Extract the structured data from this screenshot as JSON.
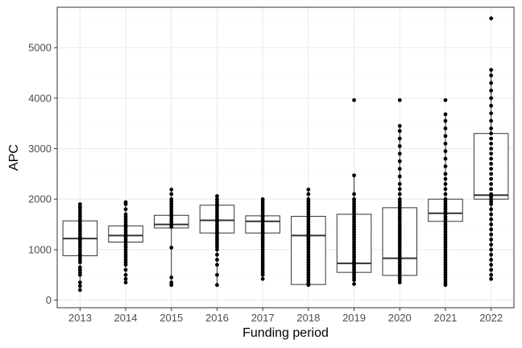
{
  "chart_data": {
    "type": "box",
    "title": "",
    "xlabel": "Funding period",
    "ylabel": "APC",
    "ylim": [
      -150,
      5800
    ],
    "yticks": [
      0,
      1000,
      2000,
      3000,
      4000,
      5000
    ],
    "theme": "bw",
    "grid": true,
    "categories": [
      "2013",
      "2014",
      "2015",
      "2016",
      "2017",
      "2018",
      "2019",
      "2020",
      "2021",
      "2022"
    ],
    "boxes": [
      {
        "category": "2013",
        "q1": 880,
        "median": 1220,
        "q3": 1570,
        "whisker_low": 200,
        "whisker_high": 1900
      },
      {
        "category": "2014",
        "q1": 1150,
        "median": 1280,
        "q3": 1470,
        "whisker_low": 350,
        "whisker_high": 1940
      },
      {
        "category": "2015",
        "q1": 1430,
        "median": 1500,
        "q3": 1680,
        "whisker_low": 300,
        "whisker_high": 2190
      },
      {
        "category": "2016",
        "q1": 1330,
        "median": 1580,
        "q3": 1880,
        "whisker_low": 300,
        "whisker_high": 2060
      },
      {
        "category": "2017",
        "q1": 1330,
        "median": 1560,
        "q3": 1670,
        "whisker_low": 420,
        "whisker_high": 2000
      },
      {
        "category": "2018",
        "q1": 310,
        "median": 1280,
        "q3": 1660,
        "whisker_low": 300,
        "whisker_high": 2190
      },
      {
        "category": "2019",
        "q1": 550,
        "median": 730,
        "q3": 1700,
        "whisker_low": 320,
        "whisker_high": 2470
      },
      {
        "category": "2020",
        "q1": 490,
        "median": 830,
        "q3": 1830,
        "whisker_low": 350,
        "whisker_high": 3450
      },
      {
        "category": "2021",
        "q1": 1560,
        "median": 1720,
        "q3": 2000,
        "whisker_low": 300,
        "whisker_high": 3680
      },
      {
        "category": "2022",
        "q1": 2000,
        "median": 2080,
        "q3": 3300,
        "whisker_low": 420,
        "whisker_high": 4560
      }
    ],
    "points": [
      {
        "category": "2013",
        "values": [
          1900,
          1850,
          1800,
          1750,
          1700,
          1650,
          1600,
          1550,
          1500,
          1450,
          1400,
          1350,
          1300,
          1250,
          1200,
          1150,
          1100,
          1050,
          1000,
          950,
          900,
          850,
          800,
          750,
          650,
          600,
          550,
          500,
          350,
          280,
          200
        ]
      },
      {
        "category": "2014",
        "values": [
          1940,
          1900,
          1800,
          1700,
          1650,
          1600,
          1550,
          1500,
          1450,
          1400,
          1350,
          1300,
          1250,
          1200,
          1150,
          1100,
          1050,
          1000,
          950,
          900,
          850,
          800,
          750,
          700,
          600,
          500,
          420,
          350
        ]
      },
      {
        "category": "2015",
        "values": [
          2190,
          2100,
          2000,
          1950,
          1900,
          1850,
          1800,
          1750,
          1700,
          1650,
          1600,
          1550,
          1500,
          1450,
          1040,
          450,
          350,
          300
        ]
      },
      {
        "category": "2016",
        "values": [
          2060,
          2000,
          1950,
          1900,
          1850,
          1800,
          1750,
          1700,
          1650,
          1600,
          1550,
          1500,
          1450,
          1400,
          1350,
          1300,
          1250,
          1200,
          1150,
          1100,
          1050,
          1000,
          900,
          800,
          700,
          500,
          300
        ]
      },
      {
        "category": "2017",
        "values": [
          2000,
          1950,
          1900,
          1850,
          1800,
          1750,
          1700,
          1650,
          1600,
          1550,
          1500,
          1450,
          1400,
          1350,
          1300,
          1250,
          1200,
          1150,
          1100,
          1050,
          1000,
          950,
          900,
          850,
          800,
          750,
          700,
          650,
          600,
          550,
          500,
          420
        ]
      },
      {
        "category": "2018",
        "values": [
          2190,
          2100,
          2000,
          1950,
          1900,
          1850,
          1800,
          1750,
          1700,
          1650,
          1600,
          1550,
          1500,
          1450,
          1400,
          1350,
          1300,
          1250,
          1200,
          1150,
          1100,
          1050,
          1000,
          950,
          900,
          850,
          800,
          750,
          700,
          650,
          600,
          550,
          500,
          450,
          400,
          350,
          320,
          300
        ]
      },
      {
        "category": "2019",
        "values": [
          3960,
          2470,
          2100,
          2000,
          1950,
          1900,
          1850,
          1800,
          1750,
          1700,
          1650,
          1600,
          1550,
          1500,
          1450,
          1400,
          1350,
          1300,
          1250,
          1200,
          1150,
          1100,
          1050,
          1000,
          950,
          900,
          850,
          800,
          750,
          700,
          650,
          600,
          550,
          500,
          450,
          400,
          320
        ]
      },
      {
        "category": "2020",
        "values": [
          3960,
          3450,
          3350,
          3200,
          3050,
          2900,
          2750,
          2600,
          2450,
          2300,
          2200,
          2100,
          2000,
          1950,
          1900,
          1850,
          1800,
          1750,
          1700,
          1650,
          1600,
          1550,
          1500,
          1450,
          1400,
          1350,
          1300,
          1250,
          1200,
          1150,
          1100,
          1050,
          1000,
          950,
          900,
          850,
          800,
          750,
          700,
          650,
          600,
          550,
          500,
          450,
          400,
          350
        ]
      },
      {
        "category": "2021",
        "values": [
          3960,
          3680,
          3550,
          3400,
          3250,
          3100,
          2950,
          2800,
          2650,
          2500,
          2400,
          2300,
          2200,
          2100,
          2000,
          1950,
          1900,
          1850,
          1800,
          1750,
          1700,
          1650,
          1600,
          1550,
          1500,
          1450,
          1400,
          1350,
          1300,
          1250,
          1200,
          1150,
          1100,
          1050,
          1000,
          950,
          900,
          850,
          800,
          750,
          700,
          650,
          600,
          550,
          500,
          450,
          400,
          350,
          300
        ]
      },
      {
        "category": "2022",
        "values": [
          5580,
          4560,
          4450,
          4300,
          4150,
          4000,
          3850,
          3700,
          3550,
          3400,
          3300,
          3200,
          3100,
          3000,
          2900,
          2800,
          2700,
          2600,
          2500,
          2400,
          2300,
          2200,
          2100,
          2050,
          2000,
          1950,
          1900,
          1800,
          1700,
          1600,
          1500,
          1400,
          1300,
          1200,
          1100,
          1000,
          900,
          800,
          700,
          600,
          500,
          420
        ]
      }
    ],
    "colors": {
      "box_stroke": "#333333",
      "point": "#000000",
      "grid_major": "#ebebeb",
      "grid_minor": "#f5f5f5",
      "panel_border": "#333333",
      "tick_text": "#4d4d4d",
      "title_text": "#000000"
    }
  }
}
